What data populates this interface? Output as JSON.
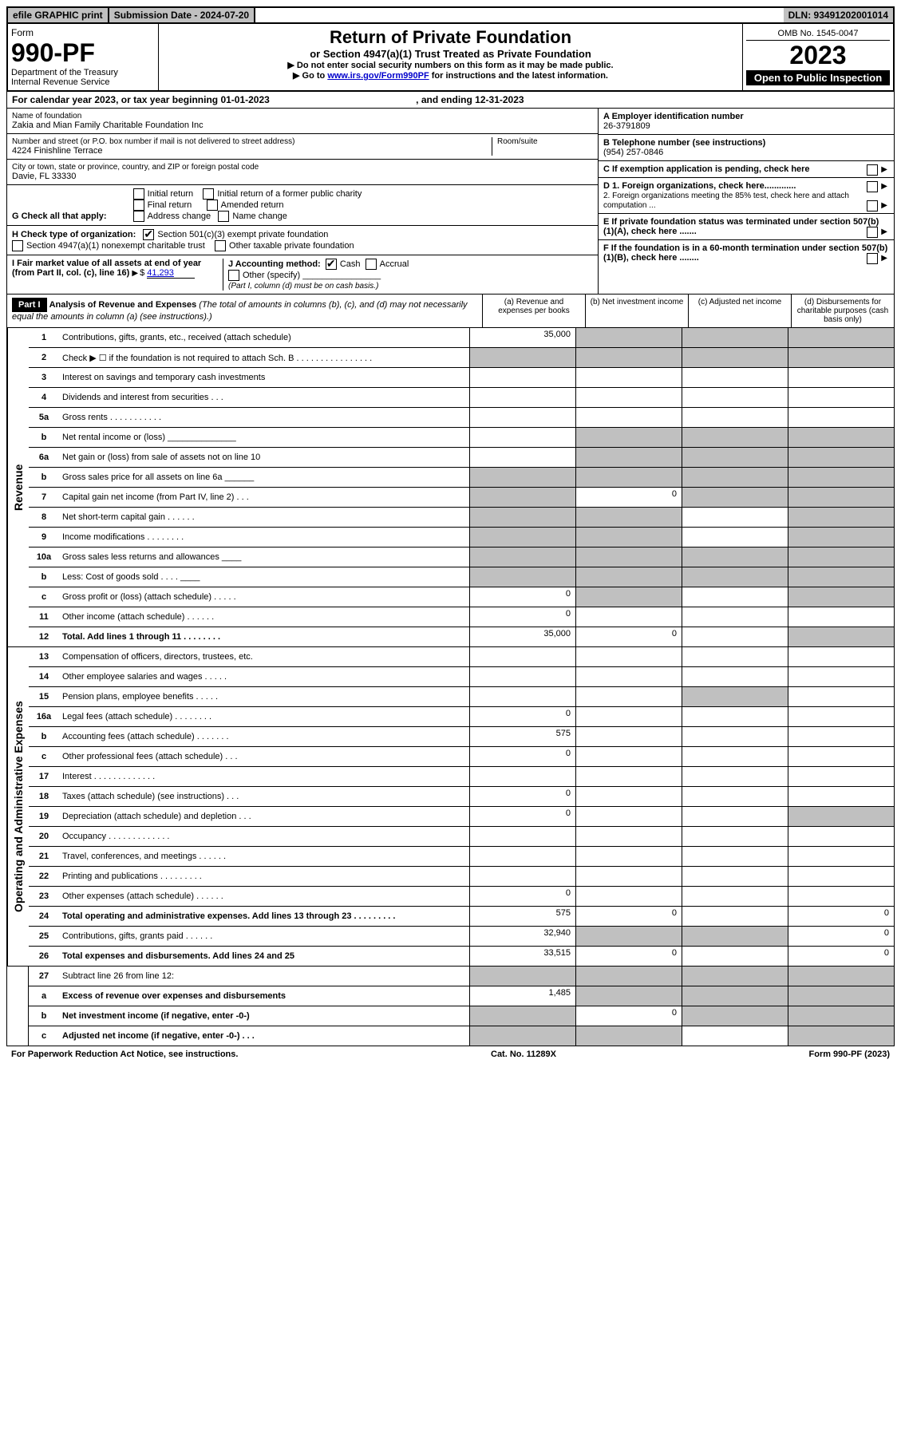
{
  "top": {
    "efile": "efile GRAPHIC print",
    "sub_label": "Submission Date - 2024-07-20",
    "dln": "DLN: 93491202001014"
  },
  "header": {
    "form": "Form",
    "form_no": "990-PF",
    "dept": "Department of the Treasury",
    "irs": "Internal Revenue Service",
    "title": "Return of Private Foundation",
    "sub": "or Section 4947(a)(1) Trust Treated as Private Foundation",
    "note1": "▶ Do not enter social security numbers on this form as it may be made public.",
    "note2": "▶ Go to www.irs.gov/Form990PF for instructions and the latest information.",
    "link_text": "www.irs.gov/Form990PF",
    "omb": "OMB No. 1545-0047",
    "year": "2023",
    "open": "Open to Public Inspection"
  },
  "cal": {
    "text": "For calendar year 2023, or tax year beginning 01-01-2023",
    "end": ", and ending 12-31-2023"
  },
  "info": {
    "name_lbl": "Name of foundation",
    "name": "Zakia and Mian Family Charitable Foundation Inc",
    "addr_lbl": "Number and street (or P.O. box number if mail is not delivered to street address)",
    "addr": "4224 Finishline Terrace",
    "room_lbl": "Room/suite",
    "city_lbl": "City or town, state or province, country, and ZIP or foreign postal code",
    "city": "Davie, FL  33330",
    "a_lbl": "A Employer identification number",
    "a_val": "26-3791809",
    "b_lbl": "B Telephone number (see instructions)",
    "b_val": "(954) 257-0846",
    "c_lbl": "C If exemption application is pending, check here",
    "d1": "D 1. Foreign organizations, check here.............",
    "d2": "2. Foreign organizations meeting the 85% test, check here and attach computation ...",
    "e": "E  If private foundation status was terminated under section 507(b)(1)(A), check here .......",
    "f": "F  If the foundation is in a 60-month termination under section 507(b)(1)(B), check here ........"
  },
  "g": {
    "lbl": "G Check all that apply:",
    "o1": "Initial return",
    "o2": "Final return",
    "o3": "Address change",
    "o4": "Initial return of a former public charity",
    "o5": "Amended return",
    "o6": "Name change"
  },
  "h": {
    "lbl": "H Check type of organization:",
    "o1": "Section 501(c)(3) exempt private foundation",
    "o2": "Section 4947(a)(1) nonexempt charitable trust",
    "o3": "Other taxable private foundation"
  },
  "i": {
    "lbl": "I Fair market value of all assets at end of year (from Part II, col. (c), line 16)",
    "val": "41,293"
  },
  "j": {
    "lbl": "J Accounting method:",
    "o1": "Cash",
    "o2": "Accrual",
    "o3": "Other (specify)",
    "note": "(Part I, column (d) must be on cash basis.)"
  },
  "part1": {
    "hdr": "Part I",
    "title": "Analysis of Revenue and Expenses",
    "sub": "(The total of amounts in columns (b), (c), and (d) may not necessarily equal the amounts in column (a) (see instructions).)",
    "ca": "(a)   Revenue and expenses per books",
    "cb": "(b)   Net investment income",
    "cc": "(c)   Adjusted net income",
    "cd": "(d)   Disbursements for charitable purposes (cash basis only)"
  },
  "rev_label": "Revenue",
  "exp_label": "Operating and Administrative Expenses",
  "lines": [
    {
      "n": "1",
      "d": "Contributions, gifts, grants, etc., received (attach schedule)",
      "a": "35,000",
      "greyBCD": true
    },
    {
      "n": "2",
      "d": "Check ▶ ☐ if the foundation is not required to attach Sch. B    .  .  .  .  .  .  .  .  .  .  .  .  .  .  .  .",
      "greyAll": true,
      "noborder": true
    },
    {
      "n": "3",
      "d": "Interest on savings and temporary cash investments"
    },
    {
      "n": "4",
      "d": "Dividends and interest from securities    .   .   ."
    },
    {
      "n": "5a",
      "d": "Gross rents    .   .   .   .   .   .   .   .   .   .   ."
    },
    {
      "n": "b",
      "d": "Net rental income or (loss)  ______________",
      "greyBCD": true
    },
    {
      "n": "6a",
      "d": "Net gain or (loss) from sale of assets not on line 10",
      "greyBCD": true
    },
    {
      "n": "b",
      "d": "Gross sales price for all assets on line 6a ______",
      "greyAll": true
    },
    {
      "n": "7",
      "d": "Capital gain net income (from Part IV, line 2)    .   .   .",
      "b": "0",
      "greyA": true,
      "greyCD": true
    },
    {
      "n": "8",
      "d": "Net short-term capital gain   .   .   .   .   .   .",
      "greyAB": true,
      "greyD": true
    },
    {
      "n": "9",
      "d": "Income modifications   .   .   .   .   .   .   .   .",
      "greyAB": true,
      "greyD": true
    },
    {
      "n": "10a",
      "d": "Gross sales less returns and allowances  ____",
      "greyAll": true
    },
    {
      "n": "b",
      "d": "Less: Cost of goods sold    .   .   .   .  ____",
      "greyAll": true
    },
    {
      "n": "c",
      "d": "Gross profit or (loss) (attach schedule)    .   .   .   .   .",
      "a": "0",
      "greyB": true,
      "greyD": true
    },
    {
      "n": "11",
      "d": "Other income (attach schedule)    .   .   .   .   .   .",
      "a": "0"
    },
    {
      "n": "12",
      "d": "Total. Add lines 1 through 11   .   .   .   .   .   .   .   .",
      "a": "35,000",
      "b": "0",
      "bold": true,
      "greyD": true
    }
  ],
  "exp_lines": [
    {
      "n": "13",
      "d": "Compensation of officers, directors, trustees, etc."
    },
    {
      "n": "14",
      "d": "Other employee salaries and wages   .   .   .   .   ."
    },
    {
      "n": "15",
      "d": "Pension plans, employee benefits   .   .   .   .   .",
      "greyC": true
    },
    {
      "n": "16a",
      "d": "Legal fees (attach schedule)  .   .   .   .   .   .   .   .",
      "a": "0"
    },
    {
      "n": "b",
      "d": "Accounting fees (attach schedule)  .   .   .   .   .   .   .",
      "a": "575"
    },
    {
      "n": "c",
      "d": "Other professional fees (attach schedule)    .   .   .",
      "a": "0"
    },
    {
      "n": "17",
      "d": "Interest  .   .   .   .   .   .   .   .   .   .   .   .   ."
    },
    {
      "n": "18",
      "d": "Taxes (attach schedule) (see instructions)    .   .   .",
      "a": "0"
    },
    {
      "n": "19",
      "d": "Depreciation (attach schedule) and depletion   .   .   .",
      "a": "0",
      "greyD": true
    },
    {
      "n": "20",
      "d": "Occupancy  .   .   .   .   .   .   .   .   .   .   .   .   ."
    },
    {
      "n": "21",
      "d": "Travel, conferences, and meetings  .   .   .   .   .   ."
    },
    {
      "n": "22",
      "d": "Printing and publications  .   .   .   .   .   .   .   .   ."
    },
    {
      "n": "23",
      "d": "Other expenses (attach schedule)  .   .   .   .   .   .",
      "a": "0"
    },
    {
      "n": "24",
      "d": "Total operating and administrative expenses. Add lines 13 through 23   .   .   .   .   .   .   .   .   .",
      "a": "575",
      "b": "0",
      "d4": "0",
      "bold": true
    },
    {
      "n": "25",
      "d": "Contributions, gifts, grants paid    .   .   .   .   .   .",
      "a": "32,940",
      "d4": "0",
      "greyBC": true
    },
    {
      "n": "26",
      "d": "Total expenses and disbursements. Add lines 24 and 25",
      "a": "33,515",
      "b": "0",
      "d4": "0",
      "bold": true
    }
  ],
  "net_lines": [
    {
      "n": "27",
      "d": "Subtract line 26 from line 12:",
      "greyAll": true
    },
    {
      "n": "a",
      "d": "Excess of revenue over expenses and disbursements",
      "a": "1,485",
      "bold": true,
      "greyBCD": true
    },
    {
      "n": "b",
      "d": "Net investment income (if negative, enter -0-)",
      "b": "0",
      "bold": true,
      "greyA": true,
      "greyCD": true
    },
    {
      "n": "c",
      "d": "Adjusted net income (if negative, enter -0-)   .   .   .",
      "bold": true,
      "greyAB": true,
      "greyD": true
    }
  ],
  "footer": {
    "pra": "For Paperwork Reduction Act Notice, see instructions.",
    "cat": "Cat. No. 11289X",
    "form": "Form 990-PF (2023)"
  }
}
